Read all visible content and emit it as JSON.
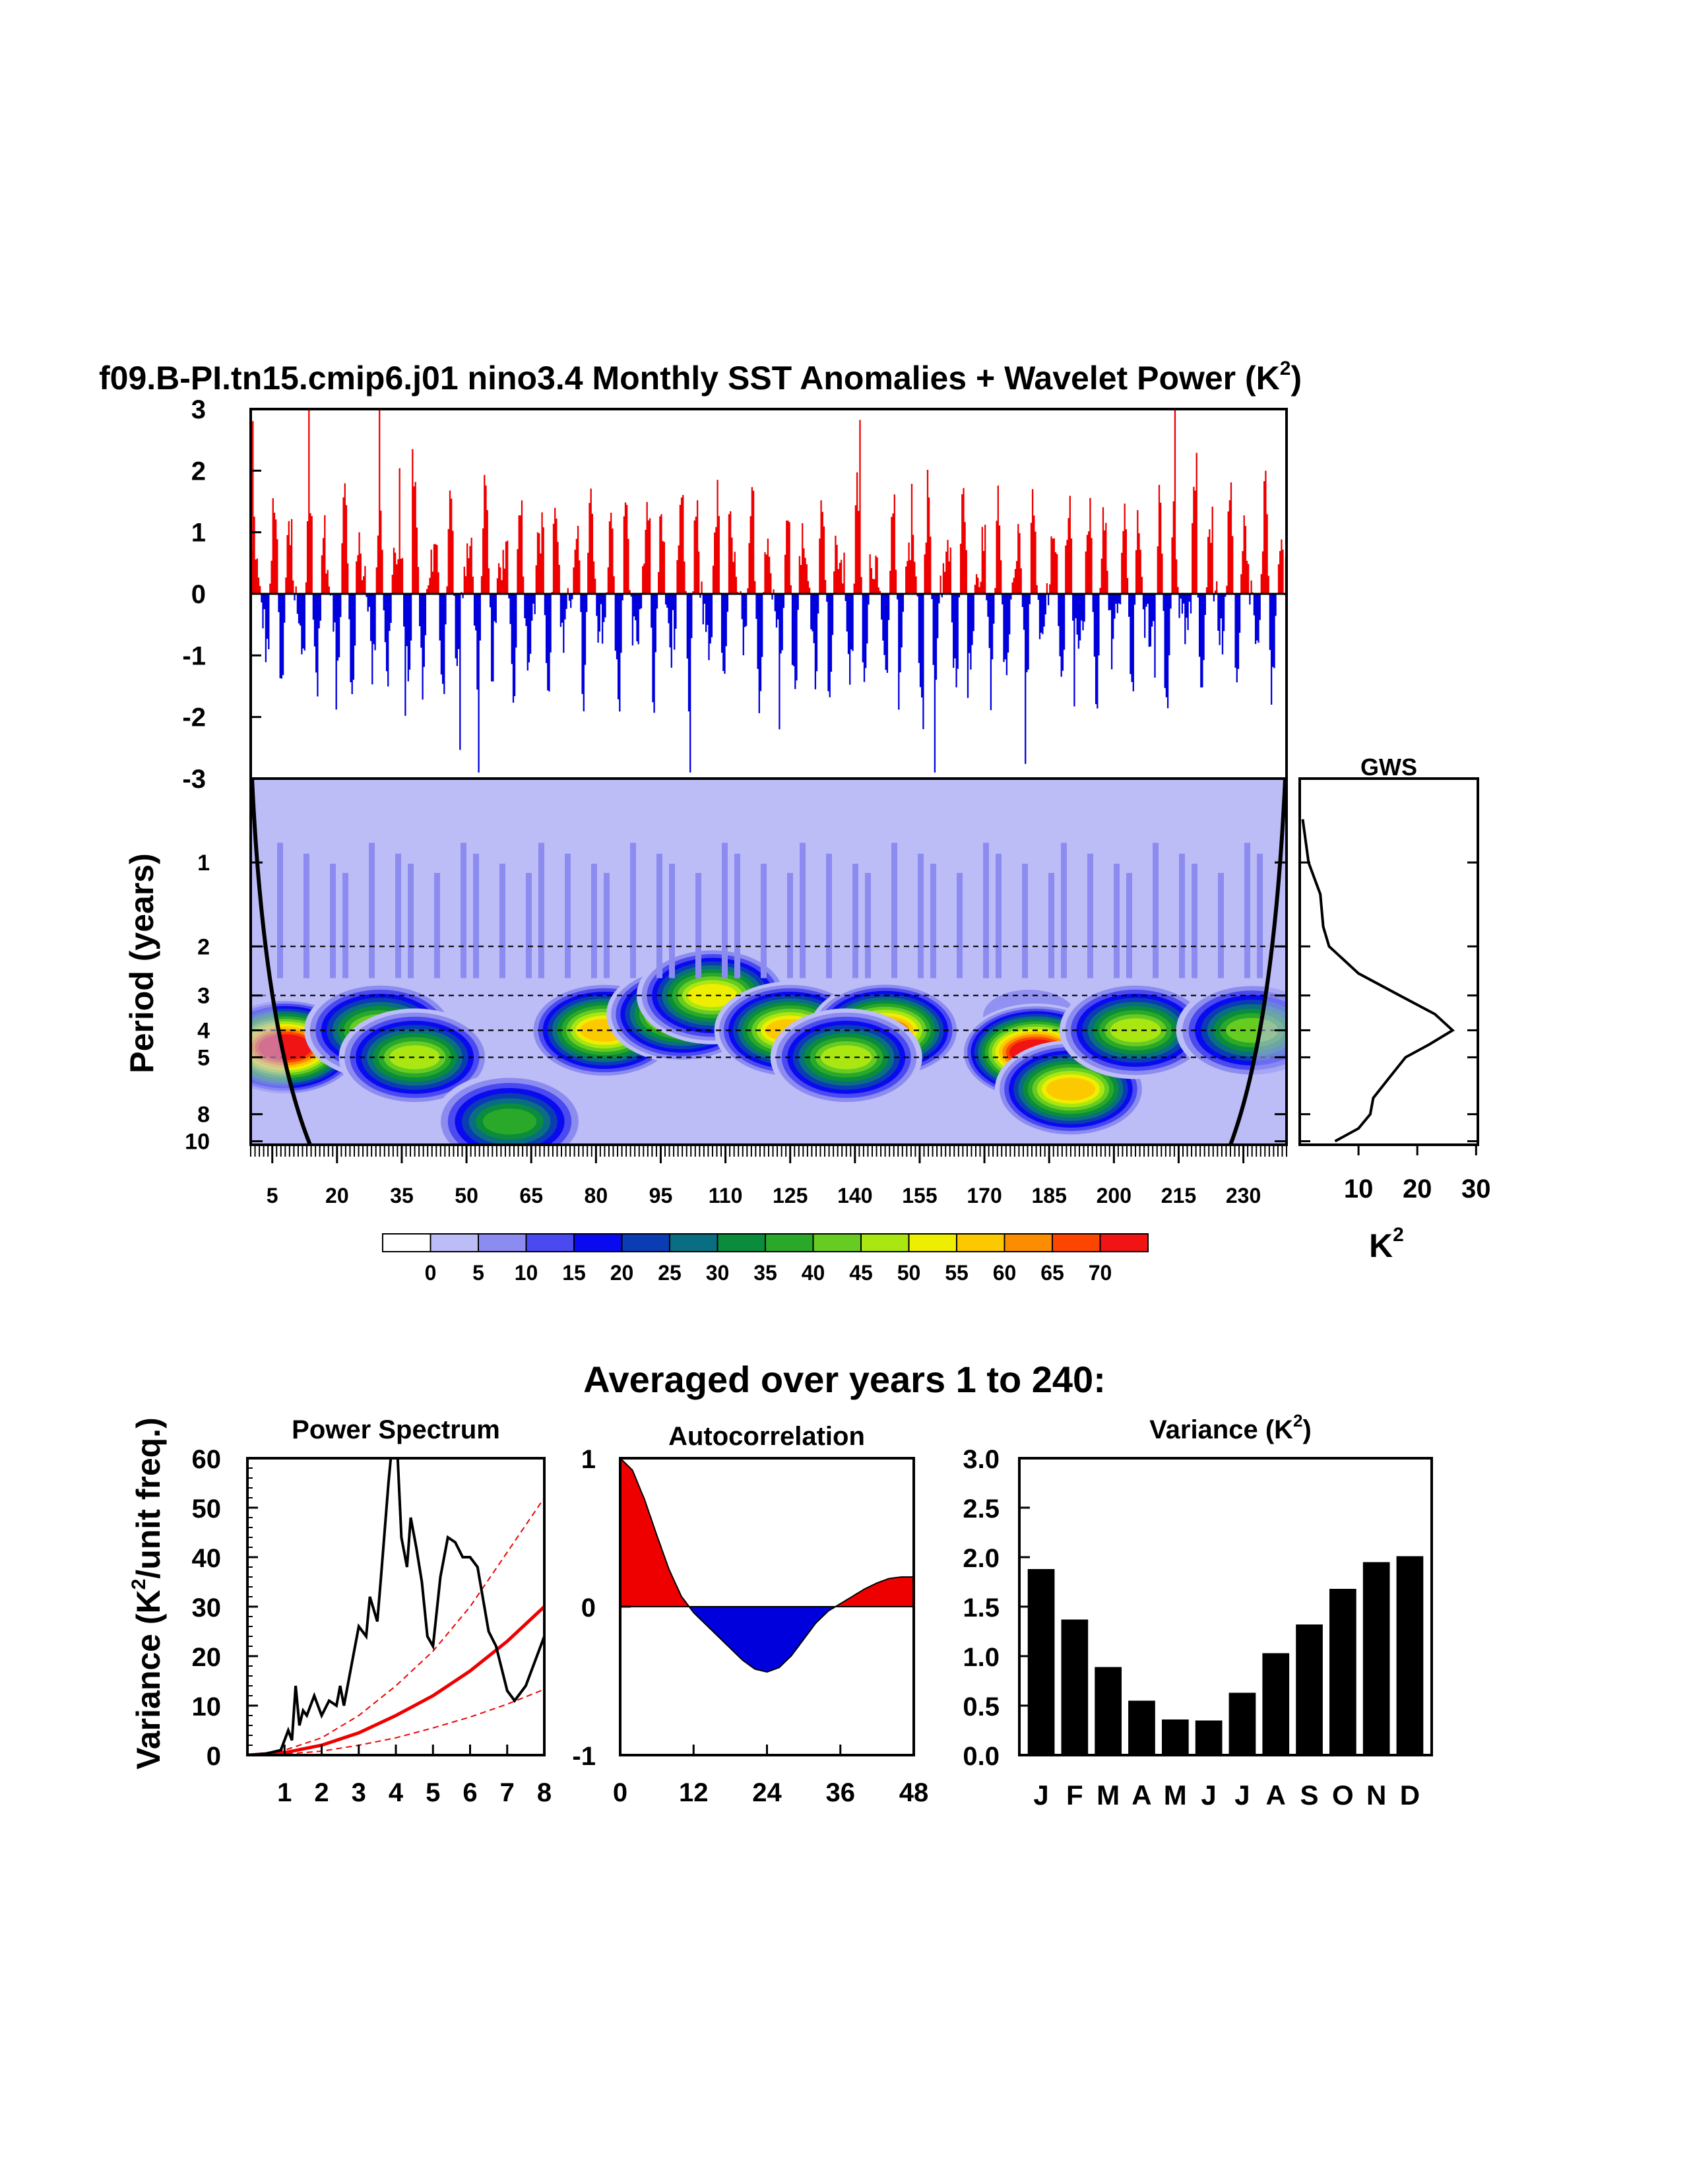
{
  "title": "f09.B-PI.tn15.cmip6.j01 nino3.4 Monthly SST Anomalies + Wavelet Power (K",
  "title_sup": "2",
  "title_close": ")",
  "colors": {
    "positive": "#ee0000",
    "negative": "#0000dd",
    "contour_levels": [
      "#ffffff",
      "#bcbcf7",
      "#8c8cf0",
      "#4a4af0",
      "#0a0af0",
      "#0a3cb4",
      "#0a6e82",
      "#0a8c3c",
      "#2aa82a",
      "#66cc22",
      "#aae612",
      "#eeee00",
      "#fcc800",
      "#fc8c00",
      "#fc4600",
      "#f01414"
    ]
  },
  "timeseries": {
    "yticks": [
      "3",
      "2",
      "1",
      "0",
      "-1",
      "-2",
      "-3"
    ],
    "ylim": [
      -3,
      3
    ],
    "n_years": 240
  },
  "wavelet": {
    "ylabel": "Period (years)",
    "yticks": [
      "1",
      "2",
      "3",
      "4",
      "5",
      "8",
      "10"
    ],
    "xticks": [
      "5",
      "20",
      "35",
      "50",
      "65",
      "80",
      "95",
      "110",
      "125",
      "140",
      "155",
      "170",
      "185",
      "200",
      "215",
      "230"
    ],
    "dashed_periods": [
      2,
      3,
      4,
      5
    ],
    "peaks": [
      {
        "year": 8,
        "period": 4.6,
        "power": 70
      },
      {
        "year": 30,
        "period": 4.0,
        "power": 40
      },
      {
        "year": 38,
        "period": 5.0,
        "power": 40
      },
      {
        "year": 60,
        "period": 8.5,
        "power": 30
      },
      {
        "year": 82,
        "period": 4.0,
        "power": 50
      },
      {
        "year": 100,
        "period": 3.5,
        "power": 50
      },
      {
        "year": 107,
        "period": 3.0,
        "power": 45
      },
      {
        "year": 125,
        "period": 4.0,
        "power": 50
      },
      {
        "year": 147,
        "period": 4.0,
        "power": 55
      },
      {
        "year": 138,
        "period": 5.0,
        "power": 40
      },
      {
        "year": 182,
        "period": 4.8,
        "power": 70
      },
      {
        "year": 190,
        "period": 6.5,
        "power": 50
      },
      {
        "year": 205,
        "period": 4.0,
        "power": 40
      },
      {
        "year": 232,
        "period": 4.0,
        "power": 35
      }
    ]
  },
  "colorbar": {
    "labels": [
      "0",
      "5",
      "10",
      "15",
      "20",
      "25",
      "30",
      "35",
      "40",
      "45",
      "50",
      "55",
      "60",
      "65",
      "70"
    ]
  },
  "gws": {
    "title": "GWS",
    "xticks": [
      "10",
      "20",
      "30"
    ],
    "xlabel": "K",
    "xlabel_sup": "2",
    "xlim": [
      0,
      30
    ],
    "curve": [
      {
        "period": 0.7,
        "power": 0.5
      },
      {
        "period": 1.0,
        "power": 1.5
      },
      {
        "period": 1.3,
        "power": 3.5
      },
      {
        "period": 1.7,
        "power": 4.0
      },
      {
        "period": 2.0,
        "power": 5.0
      },
      {
        "period": 2.5,
        "power": 10.0
      },
      {
        "period": 3.0,
        "power": 17.0
      },
      {
        "period": 3.5,
        "power": 23.0
      },
      {
        "period": 4.0,
        "power": 26.0
      },
      {
        "period": 4.5,
        "power": 22.0
      },
      {
        "period": 5.0,
        "power": 18.0
      },
      {
        "period": 6.0,
        "power": 15.0
      },
      {
        "period": 7.0,
        "power": 12.5
      },
      {
        "period": 8.0,
        "power": 12.0
      },
      {
        "period": 9.0,
        "power": 10.0
      },
      {
        "period": 10.0,
        "power": 6.0
      }
    ]
  },
  "averaged_title": "Averaged over years 1 to 240:",
  "chart_data": [
    {
      "type": "line",
      "title": "Power Spectrum",
      "ylabel": "Variance (K",
      "ylabel_sup": "2",
      "ylabel_close": "/unit freq.)",
      "xticks": [
        "1",
        "2",
        "3",
        "4",
        "5",
        "6",
        "7",
        "8"
      ],
      "yticks": [
        "0",
        "10",
        "20",
        "30",
        "40",
        "50",
        "60"
      ],
      "xlim": [
        0,
        8
      ],
      "ylim": [
        0,
        60
      ],
      "spectrum": [
        [
          0,
          0
        ],
        [
          0.5,
          0.3
        ],
        [
          0.9,
          1
        ],
        [
          1.1,
          5
        ],
        [
          1.2,
          3
        ],
        [
          1.3,
          14
        ],
        [
          1.4,
          6
        ],
        [
          1.5,
          9
        ],
        [
          1.6,
          8
        ],
        [
          1.8,
          12
        ],
        [
          2.0,
          8
        ],
        [
          2.2,
          11
        ],
        [
          2.4,
          10
        ],
        [
          2.5,
          14
        ],
        [
          2.6,
          10
        ],
        [
          2.8,
          18
        ],
        [
          3.0,
          26
        ],
        [
          3.2,
          24
        ],
        [
          3.3,
          32
        ],
        [
          3.5,
          27
        ],
        [
          3.6,
          36
        ],
        [
          3.8,
          55
        ],
        [
          3.9,
          63
        ],
        [
          4.05,
          60
        ],
        [
          4.15,
          44
        ],
        [
          4.3,
          38
        ],
        [
          4.4,
          48
        ],
        [
          4.55,
          42
        ],
        [
          4.7,
          35
        ],
        [
          4.85,
          24
        ],
        [
          5.0,
          22
        ],
        [
          5.2,
          36
        ],
        [
          5.4,
          44
        ],
        [
          5.6,
          43
        ],
        [
          5.8,
          40
        ],
        [
          6.0,
          40
        ],
        [
          6.2,
          38
        ],
        [
          6.5,
          25
        ],
        [
          6.7,
          22
        ],
        [
          7.0,
          13
        ],
        [
          7.2,
          11
        ],
        [
          7.5,
          14
        ],
        [
          8.0,
          24
        ]
      ],
      "red_noise": [
        [
          0,
          0
        ],
        [
          1,
          0.5
        ],
        [
          2,
          2
        ],
        [
          3,
          4.5
        ],
        [
          4,
          8
        ],
        [
          5,
          12
        ],
        [
          6,
          17
        ],
        [
          7,
          23
        ],
        [
          8,
          30
        ]
      ],
      "red_noise_upper": [
        [
          0,
          0
        ],
        [
          1,
          1
        ],
        [
          2,
          3.5
        ],
        [
          3,
          8
        ],
        [
          4,
          14
        ],
        [
          5,
          21
        ],
        [
          6,
          30
        ],
        [
          7,
          41
        ],
        [
          8,
          52
        ]
      ],
      "red_noise_lower": [
        [
          0,
          0
        ],
        [
          1,
          0.2
        ],
        [
          2,
          0.8
        ],
        [
          3,
          2
        ],
        [
          4,
          3.5
        ],
        [
          5,
          5.5
        ],
        [
          6,
          7.7
        ],
        [
          7,
          10.3
        ],
        [
          8,
          13.3
        ]
      ]
    },
    {
      "type": "area",
      "title": "Autocorrelation",
      "xticks": [
        "0",
        "12",
        "24",
        "36",
        "48"
      ],
      "yticks": [
        "1",
        "0",
        "-1"
      ],
      "xlim": [
        0,
        48
      ],
      "ylim": [
        -1,
        1
      ],
      "lag": [
        0,
        2,
        4,
        6,
        8,
        10,
        12,
        14,
        16,
        18,
        20,
        22,
        24,
        26,
        28,
        30,
        32,
        34,
        36,
        38,
        40,
        42,
        44,
        46,
        48
      ],
      "acf": [
        1.0,
        0.92,
        0.72,
        0.48,
        0.25,
        0.07,
        -0.04,
        -0.12,
        -0.2,
        -0.28,
        -0.36,
        -0.42,
        -0.44,
        -0.41,
        -0.33,
        -0.22,
        -0.11,
        -0.03,
        0.02,
        0.07,
        0.12,
        0.16,
        0.19,
        0.2,
        0.2
      ]
    },
    {
      "type": "bar",
      "title": "Variance (K",
      "title_sup": "2",
      "title_close": ")",
      "categories": [
        "J",
        "F",
        "M",
        "A",
        "M",
        "J",
        "J",
        "A",
        "S",
        "O",
        "N",
        "D"
      ],
      "values": [
        1.88,
        1.37,
        0.89,
        0.55,
        0.36,
        0.35,
        0.63,
        1.03,
        1.32,
        1.68,
        1.95,
        2.01
      ],
      "yticks": [
        "3.0",
        "2.5",
        "2.0",
        "1.5",
        "1.0",
        "0.5",
        "0.0"
      ],
      "ylim": [
        0,
        3
      ]
    }
  ]
}
